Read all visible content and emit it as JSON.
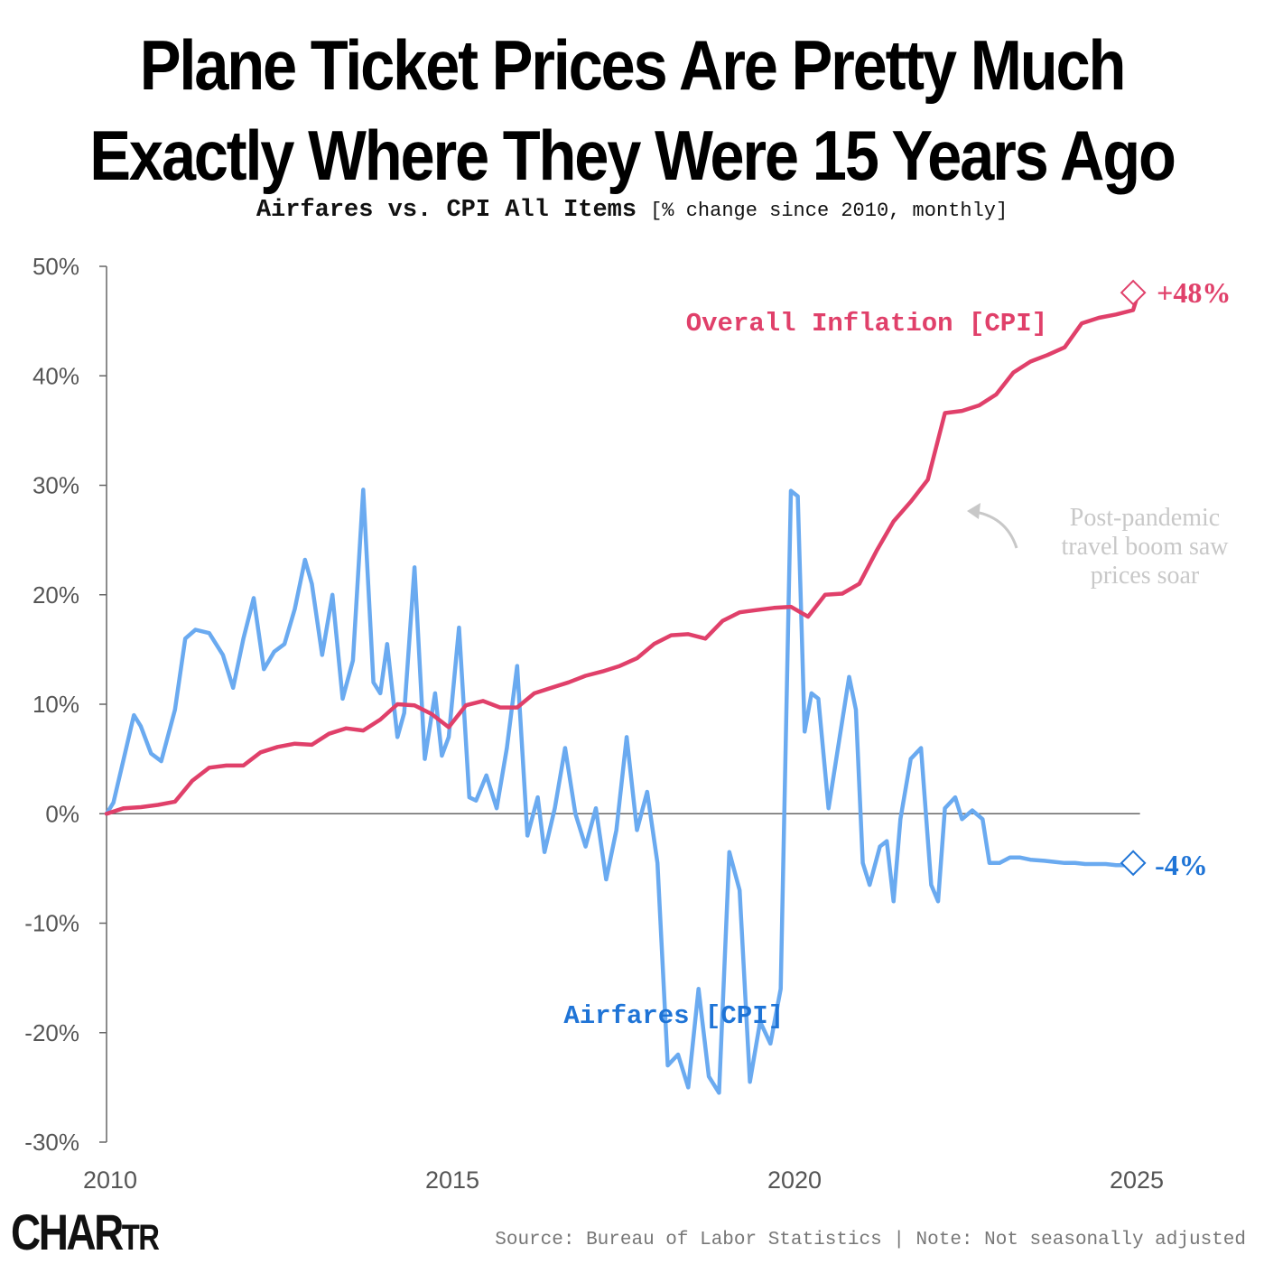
{
  "header": {
    "title_line1": "Plane Ticket Prices Are Pretty Much",
    "title_line2": "Exactly Where They Were 15 Years Ago",
    "subtitle_main": "Airfares vs. CPI All Items",
    "subtitle_note": "[% change since 2010, monthly]"
  },
  "footer": {
    "logo_main": "CHAR",
    "logo_small": "TR",
    "source": "Source: Bureau of Labor Statistics | Note: Not seasonally adjusted"
  },
  "colors": {
    "cpi": "#e0406a",
    "airfares": "#6aaaf0",
    "airfares_label": "#1f74d6",
    "annotation": "#c8c8c8",
    "axis": "#666666"
  },
  "chart_data": {
    "type": "line",
    "title": "Plane Ticket Prices Are Pretty Much Exactly Where They Were 15 Years Ago",
    "subtitle": "Airfares vs. CPI All Items [% change since 2010, monthly]",
    "xlabel": "",
    "ylabel": "% change since 2010",
    "xlim": [
      2010,
      2025.25
    ],
    "ylim": [
      -30,
      50
    ],
    "x_ticks": [
      2010,
      2015,
      2020,
      2025
    ],
    "x_tick_labels": [
      "2010",
      "2015",
      "2020",
      "2025"
    ],
    "y_ticks": [
      50,
      40,
      30,
      20,
      10,
      0,
      -10,
      -20,
      -30
    ],
    "y_tick_labels": [
      "50%",
      "40%",
      "30%",
      "20%",
      "10%",
      "0%",
      "-10%",
      "-20%",
      "-30%"
    ],
    "series": [
      {
        "name": "Overall Inflation [CPI]",
        "end_label": "+48%",
        "x": [
          2010.0,
          2010.25,
          2010.5,
          2010.75,
          2011.0,
          2011.25,
          2011.5,
          2011.75,
          2012.0,
          2012.25,
          2012.5,
          2012.75,
          2013.0,
          2013.25,
          2013.5,
          2013.75,
          2014.0,
          2014.25,
          2014.5,
          2014.75,
          2015.0,
          2015.25,
          2015.5,
          2015.75,
          2016.0,
          2016.25,
          2016.5,
          2016.75,
          2017.0,
          2017.25,
          2017.5,
          2017.75,
          2018.0,
          2018.25,
          2018.5,
          2018.75,
          2019.0,
          2019.25,
          2019.5,
          2019.75,
          2020.0,
          2020.25,
          2020.5,
          2020.75,
          2021.0,
          2021.25,
          2021.5,
          2021.75,
          2022.0,
          2022.25,
          2022.5,
          2022.75,
          2023.0,
          2023.25,
          2023.5,
          2023.75,
          2024.0,
          2024.25,
          2024.5,
          2024.75,
          2025.0,
          2025.08
        ],
        "values": [
          0.0,
          0.5,
          0.6,
          0.8,
          1.1,
          3.0,
          4.2,
          4.4,
          4.4,
          5.6,
          6.1,
          6.4,
          6.3,
          7.3,
          7.8,
          7.6,
          8.6,
          10.0,
          9.9,
          9.1,
          7.9,
          9.9,
          10.3,
          9.7,
          9.7,
          11.0,
          11.5,
          12.0,
          12.6,
          13.0,
          13.5,
          14.2,
          15.5,
          16.3,
          16.4,
          16.0,
          17.6,
          18.4,
          18.6,
          18.8,
          18.9,
          18.0,
          20.0,
          20.1,
          21.0,
          24.0,
          26.7,
          28.5,
          30.5,
          36.6,
          36.8,
          37.3,
          38.3,
          40.3,
          41.3,
          41.9,
          42.6,
          44.8,
          45.3,
          45.6,
          46.0,
          47.6
        ]
      },
      {
        "name": "Airfares [CPI]",
        "end_label": "-4%",
        "x": [
          2010.0,
          2010.1,
          2010.25,
          2010.4,
          2010.5,
          2010.65,
          2010.8,
          2011.0,
          2011.15,
          2011.3,
          2011.5,
          2011.7,
          2011.85,
          2012.0,
          2012.15,
          2012.3,
          2012.45,
          2012.6,
          2012.75,
          2012.9,
          2013.0,
          2013.15,
          2013.3,
          2013.45,
          2013.6,
          2013.75,
          2013.9,
          2014.0,
          2014.1,
          2014.25,
          2014.35,
          2014.5,
          2014.65,
          2014.8,
          2014.9,
          2015.0,
          2015.15,
          2015.3,
          2015.4,
          2015.55,
          2015.7,
          2015.85,
          2016.0,
          2016.15,
          2016.3,
          2016.4,
          2016.55,
          2016.7,
          2016.85,
          2017.0,
          2017.15,
          2017.3,
          2017.45,
          2017.6,
          2017.75,
          2017.9,
          2018.05,
          2018.2,
          2018.35,
          2018.5,
          2018.65,
          2018.8,
          2018.95,
          2019.1,
          2019.25,
          2019.4,
          2019.55,
          2019.7,
          2019.85,
          2020.0,
          2020.1,
          2020.2,
          2020.3,
          2020.4,
          2020.55,
          2020.7,
          2020.85,
          2020.95,
          2021.05,
          2021.15,
          2021.3,
          2021.4,
          2021.5,
          2021.6,
          2021.75,
          2021.9,
          2022.05,
          2022.15,
          2022.25,
          2022.4,
          2022.5,
          2022.65,
          2022.8,
          2022.9,
          2023.05,
          2023.2,
          2023.35,
          2023.5,
          2023.7,
          2023.85,
          2024.0,
          2024.15,
          2024.3,
          2024.45,
          2024.6,
          2024.75,
          2024.9,
          2025.0,
          2025.08
        ],
        "values": [
          0.0,
          1.0,
          5.0,
          9.0,
          8.0,
          5.5,
          4.8,
          9.5,
          16.0,
          16.8,
          16.5,
          14.5,
          11.5,
          16.0,
          19.7,
          13.2,
          14.8,
          15.5,
          18.7,
          23.2,
          21.0,
          14.5,
          20.0,
          10.5,
          14.0,
          29.6,
          12.0,
          11.0,
          15.5,
          7.0,
          9.2,
          22.5,
          5.0,
          11.0,
          5.3,
          7.0,
          17.0,
          1.5,
          1.2,
          3.5,
          0.5,
          6.0,
          13.5,
          -2.0,
          1.5,
          -3.5,
          0.5,
          6.0,
          0.0,
          -3.0,
          0.5,
          -6.0,
          -1.5,
          7.0,
          -1.5,
          2.0,
          -4.5,
          -23.0,
          -22.0,
          -25.0,
          -16.0,
          -24.0,
          -25.5,
          -3.5,
          -7.0,
          -24.5,
          -19.0,
          -21.0,
          -16.0,
          29.5,
          29.0,
          7.5,
          11.0,
          10.5,
          0.5,
          6.5,
          12.5,
          9.5,
          -4.5,
          -6.5,
          -3.0,
          -2.5,
          -8.0,
          -0.5,
          5.0,
          6.0,
          -6.5,
          -8.0,
          0.5,
          1.5,
          -0.5,
          0.3,
          -0.5,
          -4.5,
          -4.5,
          -4.0,
          -4.0,
          -4.2,
          -4.3,
          -4.4,
          -4.5,
          -4.5,
          -4.6,
          -4.6,
          -4.6,
          -4.7,
          -4.7,
          -4.7,
          -4.5
        ]
      }
    ],
    "annotations": [
      {
        "text_lines": [
          "Post-pandemic",
          "travel boom saw",
          "prices soar"
        ],
        "points_to_x": 2022.3,
        "points_to_y": 28
      }
    ]
  }
}
